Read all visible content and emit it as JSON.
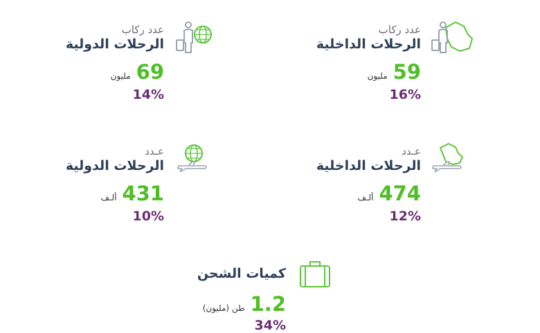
{
  "stats": [
    {
      "top": "عدد ركاب",
      "main": "الرحلات الدولية",
      "value": "69",
      "unit": "مليون",
      "pct": "14%"
    },
    {
      "top": "عدد ركاب",
      "main": "الرحلات الداخلية",
      "value": "59",
      "unit": "مليون",
      "pct": "16%"
    },
    {
      "top": "عـدد",
      "main": "الرحلات الدولية",
      "value": "431",
      "unit": "ألـف",
      "pct": "10%"
    },
    {
      "top": "عـدد",
      "main": "الرحلات الداخلية",
      "value": "474",
      "unit": "ألـف",
      "pct": "12%"
    },
    {
      "top": "",
      "main": "كميات الشحن",
      "value": "1.2",
      "unit": "طن (مليون)",
      "pct": "34%"
    }
  ],
  "icons": {
    "intl_passengers": "traveler-globe-icon",
    "dom_passengers": "traveler-saudi-map-icon",
    "intl_flights": "airplane-globe-icon",
    "dom_flights": "airplane-saudi-map-icon",
    "cargo": "suitcase-icon"
  },
  "colors": {
    "value": "#4fbf26",
    "percent": "#6a2c74",
    "heading": "#2d3e57",
    "icon_gray": "#9aa4ae",
    "icon_green": "#5cc53a"
  }
}
